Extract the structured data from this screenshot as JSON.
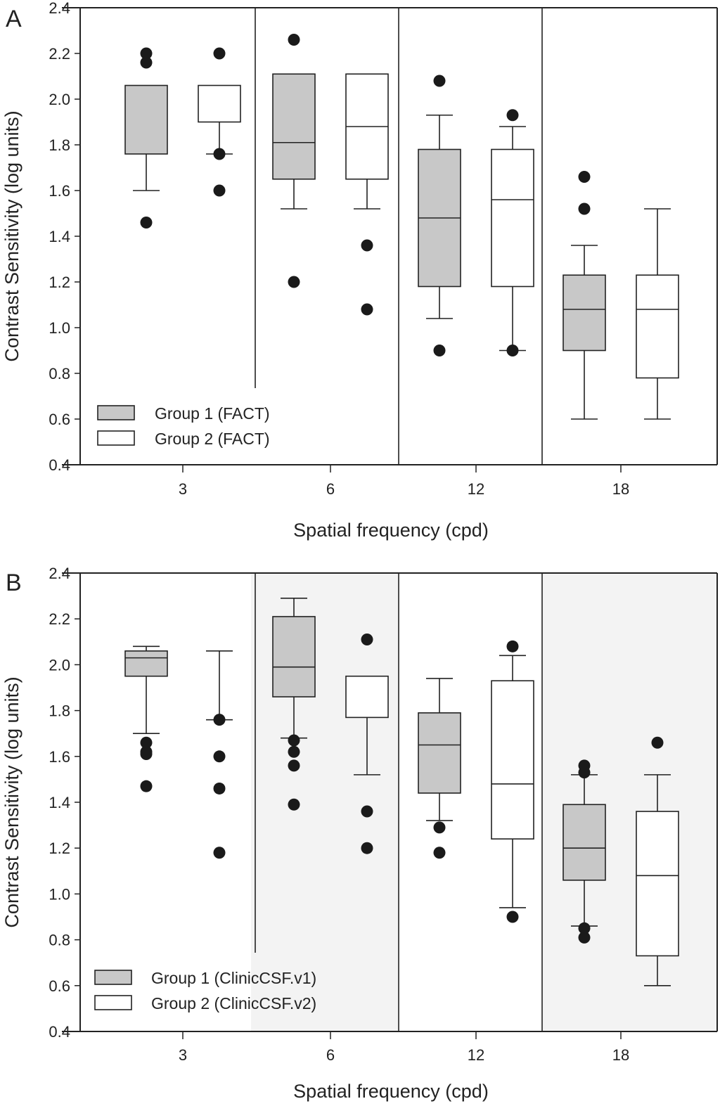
{
  "chart_data": [
    {
      "type": "box",
      "panel_label": "A",
      "xlabel": "Spatial frequency (cpd)",
      "ylabel": "Contrast Sensitivity (log units)",
      "ylim": [
        0.4,
        2.4
      ],
      "yticks": [
        "0.4",
        "0.6",
        "0.8",
        "1.0",
        "1.2",
        "1.4",
        "1.6",
        "1.8",
        "2.0",
        "2.2",
        "2.4"
      ],
      "categories": [
        "3",
        "6",
        "12",
        "18"
      ],
      "shaded_categories": [],
      "legend": {
        "placement": "bottom-left",
        "entries": [
          {
            "label": "Group 1 (FACT)",
            "fill": "#c8c8c8"
          },
          {
            "label": "Group 2 (FACT)",
            "fill": "#ffffff"
          }
        ]
      },
      "series": [
        {
          "name": "Group 1 (FACT)",
          "fill": "#c8c8c8",
          "boxes": [
            {
              "q1": 1.76,
              "median": null,
              "q3": 2.06,
              "wlo": 1.6,
              "whi": null,
              "outliers": [
                2.2,
                2.16,
                1.46
              ]
            },
            {
              "q1": 1.65,
              "median": 1.81,
              "q3": 2.11,
              "wlo": 1.52,
              "whi": null,
              "outliers": [
                2.26,
                1.2
              ]
            },
            {
              "q1": 1.18,
              "median": 1.48,
              "q3": 1.78,
              "wlo": 1.04,
              "whi": 1.93,
              "outliers": [
                2.08,
                0.9
              ]
            },
            {
              "q1": 0.9,
              "median": 1.08,
              "q3": 1.23,
              "wlo": 0.6,
              "whi": 1.36,
              "outliers": [
                1.66,
                1.52
              ]
            }
          ]
        },
        {
          "name": "Group 2 (FACT)",
          "fill": "#ffffff",
          "boxes": [
            {
              "q1": 1.9,
              "median": null,
              "q3": 2.06,
              "wlo": 1.76,
              "whi": null,
              "outliers": [
                2.2,
                1.76,
                1.6
              ]
            },
            {
              "q1": 1.65,
              "median": 1.88,
              "q3": 2.11,
              "wlo": 1.52,
              "whi": null,
              "outliers": [
                1.36,
                1.08
              ]
            },
            {
              "q1": 1.18,
              "median": 1.56,
              "q3": 1.78,
              "wlo": 0.9,
              "whi": 1.88,
              "outliers": [
                1.93,
                0.9
              ]
            },
            {
              "q1": 0.78,
              "median": 1.08,
              "q3": 1.23,
              "wlo": 0.6,
              "whi": 1.52,
              "outliers": []
            }
          ]
        }
      ]
    },
    {
      "type": "box",
      "panel_label": "B",
      "xlabel": "Spatial frequency (cpd)",
      "ylabel": "Contrast Sensitivity (log units)",
      "ylim": [
        0.4,
        2.4
      ],
      "yticks": [
        "0.4",
        "0.6",
        "0.8",
        "1.0",
        "1.2",
        "1.4",
        "1.6",
        "1.8",
        "2.0",
        "2.2",
        "2.4"
      ],
      "categories": [
        "3",
        "6",
        "12",
        "18"
      ],
      "shaded_categories": [
        "6",
        "18"
      ],
      "legend": {
        "placement": "bottom-left",
        "entries": [
          {
            "label": "Group 1 (ClinicCSF.v1)",
            "fill": "#c8c8c8"
          },
          {
            "label": "Group 2 (ClinicCSF.v2)",
            "fill": "#ffffff"
          }
        ]
      },
      "series": [
        {
          "name": "Group 1 (ClinicCSF.v1)",
          "fill": "#c8c8c8",
          "boxes": [
            {
              "q1": 1.95,
              "median": 2.03,
              "q3": 2.06,
              "wlo": 1.7,
              "whi": 2.08,
              "outliers": [
                1.66,
                1.62,
                1.61,
                1.47
              ]
            },
            {
              "q1": 1.86,
              "median": 1.99,
              "q3": 2.21,
              "wlo": 1.68,
              "whi": 2.29,
              "outliers": [
                1.67,
                1.62,
                1.56,
                1.39
              ]
            },
            {
              "q1": 1.44,
              "median": 1.65,
              "q3": 1.79,
              "wlo": 1.32,
              "whi": 1.94,
              "outliers": [
                1.29,
                1.18
              ]
            },
            {
              "q1": 1.06,
              "median": 1.2,
              "q3": 1.39,
              "wlo": 0.86,
              "whi": 1.52,
              "outliers": [
                1.56,
                1.53,
                0.85,
                0.81
              ]
            }
          ]
        },
        {
          "name": "Group 2 (ClinicCSF.v2)",
          "fill": "#ffffff",
          "boxes": [
            {
              "q1": 2.06,
              "median": null,
              "q3": 2.06,
              "wlo": 1.76,
              "whi": 2.06,
              "outliers": [
                1.76,
                1.6,
                1.46,
                1.18
              ],
              "collapsed": true
            },
            {
              "q1": 1.77,
              "median": null,
              "q3": 1.95,
              "wlo": 1.52,
              "whi": null,
              "outliers": [
                2.11,
                1.36,
                1.2
              ]
            },
            {
              "q1": 1.24,
              "median": 1.48,
              "q3": 1.93,
              "wlo": 0.94,
              "whi": 2.04,
              "outliers": [
                2.08,
                0.9
              ]
            },
            {
              "q1": 0.73,
              "median": 1.08,
              "q3": 1.36,
              "wlo": 0.6,
              "whi": 1.52,
              "outliers": [
                1.66
              ]
            }
          ]
        }
      ]
    }
  ]
}
